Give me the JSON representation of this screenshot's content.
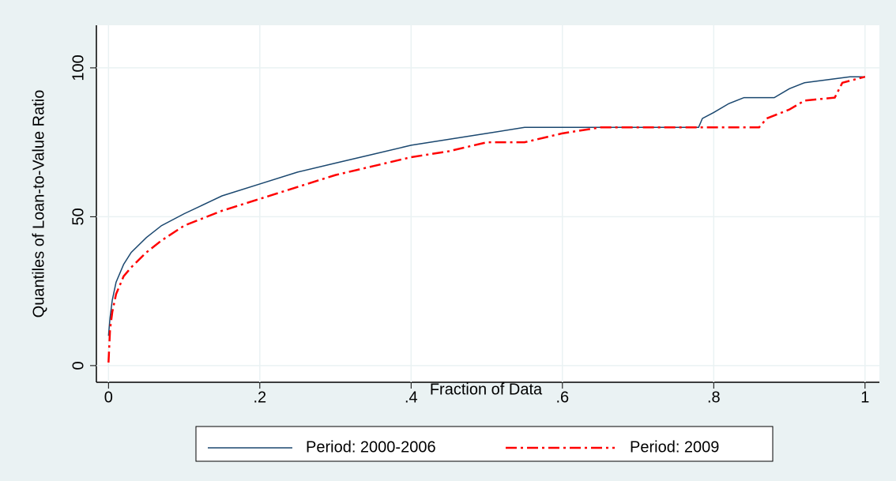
{
  "chart_data": {
    "type": "line",
    "xlabel": "Fraction of Data",
    "ylabel": "Quantiles of Loan-to-Value Ratio",
    "xlim": [
      -0.016,
      1.019
    ],
    "ylim": [
      -5.6,
      114.3
    ],
    "xticks": [
      0,
      {
        "value": 0.2,
        "label": ".2"
      },
      {
        "value": 0.4,
        "label": ".4"
      },
      {
        "value": 0.6,
        "label": ".6"
      },
      {
        "value": 0.8,
        "label": ".8"
      },
      1
    ],
    "yticks": [
      0,
      50,
      100
    ],
    "grid": true,
    "legend": "bottom",
    "series": [
      {
        "name": "Period: 2000-2006",
        "color": "#1a476f",
        "dash": "solid",
        "x": [
          0,
          0.002,
          0.005,
          0.01,
          0.02,
          0.03,
          0.05,
          0.07,
          0.1,
          0.15,
          0.2,
          0.25,
          0.3,
          0.35,
          0.4,
          0.45,
          0.5,
          0.55,
          0.6,
          0.7,
          0.78,
          0.785,
          0.8,
          0.82,
          0.84,
          0.88,
          0.9,
          0.92,
          0.98,
          1.0
        ],
        "values": [
          10,
          16,
          22,
          28,
          34,
          38,
          43,
          47,
          51,
          57,
          61,
          65,
          68,
          71,
          74,
          76,
          78,
          80,
          80,
          80,
          80,
          83,
          85,
          88,
          90,
          90,
          93,
          95,
          97,
          97
        ]
      },
      {
        "name": "Period: 2009",
        "color": "#ff0000",
        "dash": "dashdot",
        "x": [
          0,
          0.002,
          0.005,
          0.01,
          0.02,
          0.03,
          0.05,
          0.07,
          0.1,
          0.15,
          0.2,
          0.25,
          0.3,
          0.35,
          0.4,
          0.45,
          0.5,
          0.55,
          0.6,
          0.65,
          0.7,
          0.8,
          0.86,
          0.87,
          0.9,
          0.92,
          0.96,
          0.97,
          1.0
        ],
        "values": [
          1,
          12,
          18,
          24,
          30,
          33,
          38,
          42,
          47,
          52,
          56,
          60,
          64,
          67,
          70,
          72,
          75,
          75,
          78,
          80,
          80,
          80,
          80,
          83,
          86,
          89,
          90,
          95,
          97
        ]
      }
    ]
  }
}
